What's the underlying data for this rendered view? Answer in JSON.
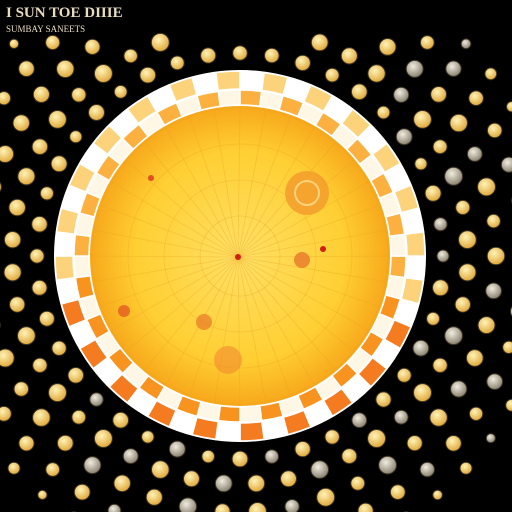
{
  "header": {
    "title": "I SUN TOE DIIIE",
    "subtitle": "SUMBAY SANEETS"
  }
}
